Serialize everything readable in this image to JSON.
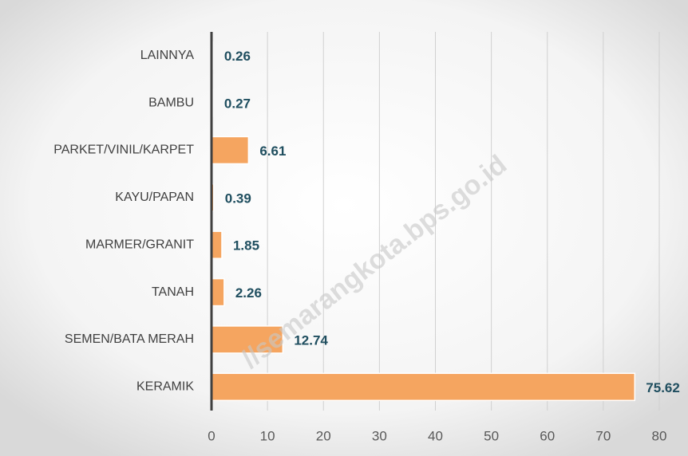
{
  "chart_data": {
    "type": "barh",
    "categories": [
      "LAINNYA",
      "BAMBU",
      "PARKET/VINIL/KARPET",
      "KAYU/PAPAN",
      "MARMER/GRANIT",
      "TANAH",
      "SEMEN/BATA MERAH",
      "KERAMIK"
    ],
    "values": [
      0.26,
      0.27,
      6.61,
      0.39,
      1.85,
      2.26,
      12.74,
      75.62
    ],
    "color": "#f5a560",
    "xlim": [
      0,
      80
    ],
    "xticks": [
      0,
      10,
      20,
      30,
      40,
      50,
      60,
      70,
      80
    ],
    "grid": true,
    "watermark": "//semarangkota.bps.go.id"
  }
}
